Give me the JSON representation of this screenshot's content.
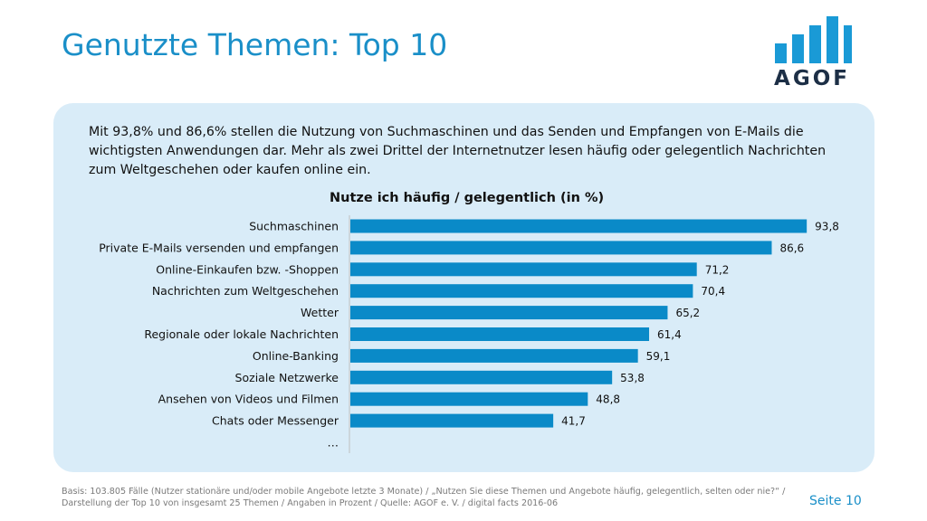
{
  "slide": {
    "title": "Genutzte Themen: Top 10",
    "intro": "Mit 93,8% und 86,6% stellen die Nutzung von Suchmaschinen und das Senden und Empfangen von E-Mails die wichtigsten Anwendungen dar. Mehr als zwei Drittel der Internetnutzer lesen häufig oder gelegentlich Nachrichten zum Weltgeschehen oder kaufen online ein.",
    "footer": "Basis: 103.805 Fälle (Nutzer stationäre und/oder mobile Angebote letzte 3 Monate) / „Nutzen Sie diese Themen und Angebote häufig, gelegentlich, selten oder nie?“ / Darstellung der Top 10 von insgesamt 25 Themen / Angaben in Prozent / Quelle: AGOF e. V. / digital facts 2016-06",
    "page": "Seite 10"
  },
  "logo": {
    "text": "AGOF",
    "bar_color": "#1a9ad6",
    "text_color": "#1d2f46"
  },
  "colors": {
    "accent": "#1a8fc8",
    "bar": "#0a8ac8",
    "panel": "#d9ecf8"
  },
  "chart_data": {
    "type": "bar",
    "orientation": "horizontal",
    "title": "Nutze ich häufig / gelegentlich (in %)",
    "categories": [
      "Suchmaschinen",
      "Private E-Mails versenden und empfangen",
      "Online-Einkaufen bzw. -Shoppen",
      "Nachrichten zum Weltgeschehen",
      "Wetter",
      "Regionale oder lokale Nachrichten",
      "Online-Banking",
      "Soziale Netzwerke",
      "Ansehen von Videos und Filmen",
      "Chats oder Messenger",
      "…"
    ],
    "values": [
      93.8,
      86.6,
      71.2,
      70.4,
      65.2,
      61.4,
      59.1,
      53.8,
      48.8,
      41.7,
      null
    ],
    "value_labels": [
      "93,8",
      "86,6",
      "71,2",
      "70,4",
      "65,2",
      "61,4",
      "59,1",
      "53,8",
      "48,8",
      "41,7",
      ""
    ],
    "xlim": [
      0,
      100
    ],
    "unit": "%",
    "grid": false
  }
}
